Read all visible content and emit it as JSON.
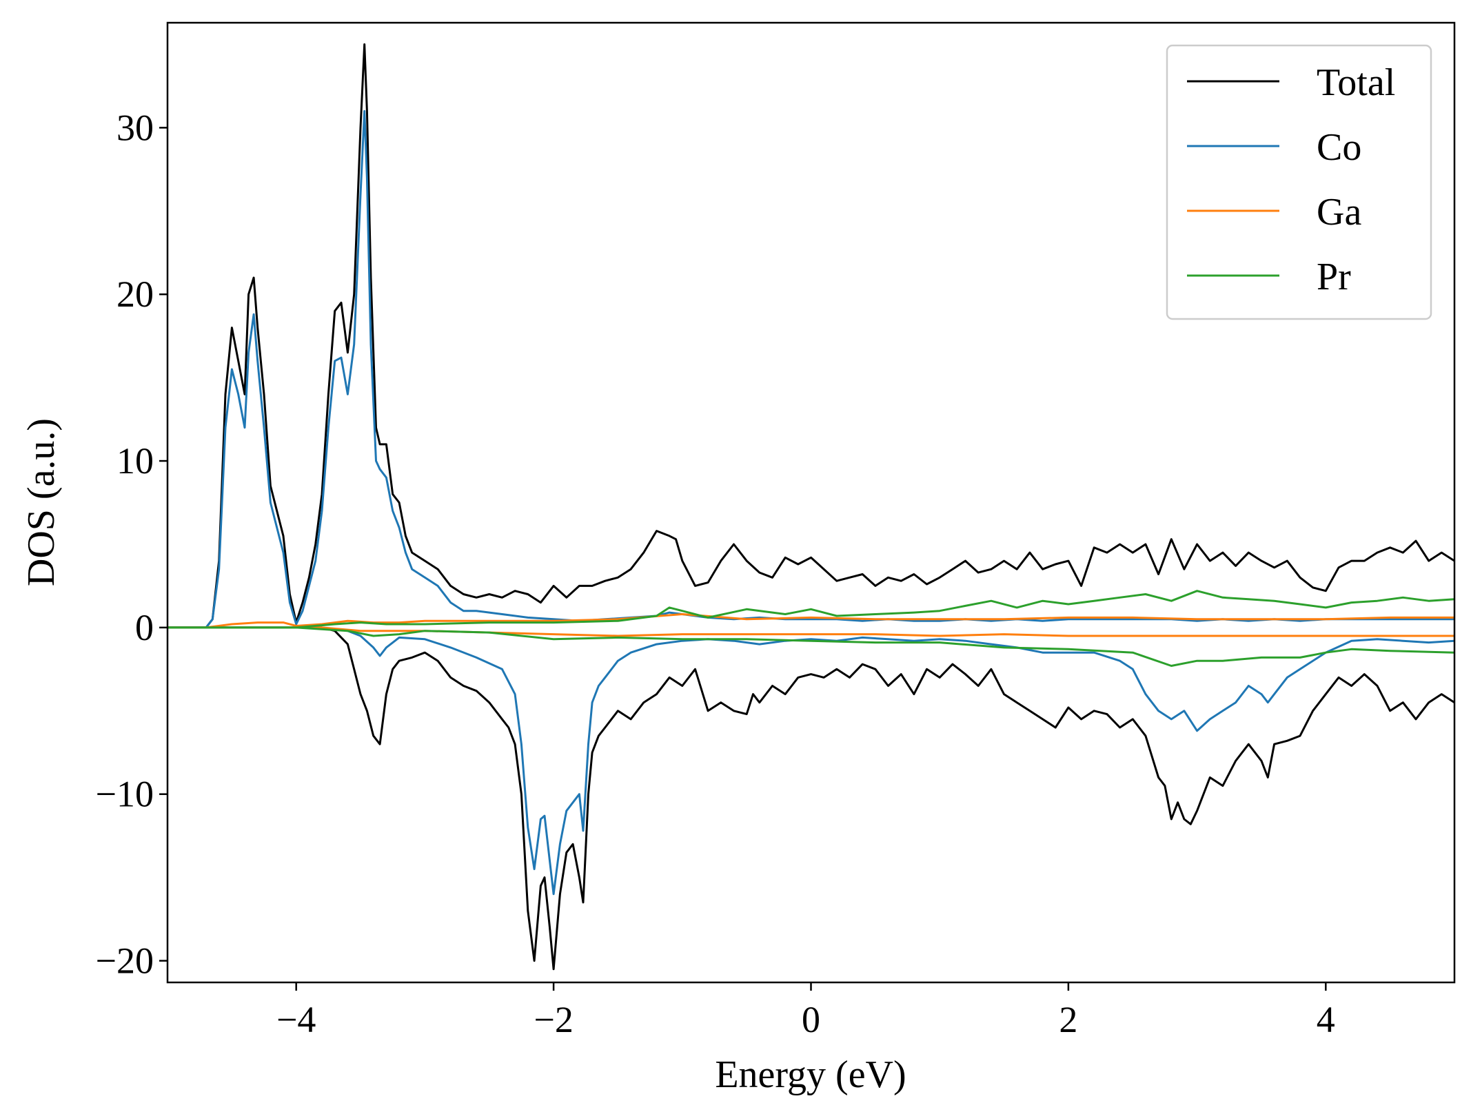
{
  "chart_data": {
    "type": "line",
    "xlabel": "Energy (eV)",
    "ylabel": "DOS (a.u.)",
    "xlim": [
      -5,
      5
    ],
    "ylim": [
      -21.3,
      36.3
    ],
    "xticks": [
      -4,
      -2,
      0,
      2,
      4
    ],
    "xtick_labels": [
      "−4",
      "−2",
      "0",
      "2",
      "4"
    ],
    "yticks": [
      -20,
      -10,
      0,
      10,
      20,
      30
    ],
    "ytick_labels": [
      "−20",
      "−10",
      "0",
      "10",
      "20",
      "30"
    ],
    "grid": false,
    "legend_position": "top-right",
    "colors": {
      "Total": "#000000",
      "Co": "#1f77b4",
      "Ga": "#ff7f0e",
      "Pr": "#2ca02c"
    },
    "series": [
      {
        "name": "Total",
        "component": "spin-up",
        "color": "#000000",
        "x": [
          -5.0,
          -4.8,
          -4.7,
          -4.65,
          -4.6,
          -4.55,
          -4.5,
          -4.45,
          -4.4,
          -4.37,
          -4.33,
          -4.3,
          -4.25,
          -4.2,
          -4.15,
          -4.1,
          -4.05,
          -4.0,
          -3.95,
          -3.9,
          -3.85,
          -3.8,
          -3.75,
          -3.7,
          -3.65,
          -3.6,
          -3.55,
          -3.5,
          -3.47,
          -3.45,
          -3.42,
          -3.38,
          -3.35,
          -3.3,
          -3.25,
          -3.2,
          -3.15,
          -3.1,
          -3.0,
          -2.9,
          -2.8,
          -2.7,
          -2.6,
          -2.5,
          -2.4,
          -2.3,
          -2.2,
          -2.1,
          -2.0,
          -1.9,
          -1.8,
          -1.7,
          -1.6,
          -1.5,
          -1.4,
          -1.3,
          -1.2,
          -1.1,
          -1.05,
          -1.0,
          -0.9,
          -0.8,
          -0.7,
          -0.6,
          -0.5,
          -0.4,
          -0.3,
          -0.2,
          -0.1,
          0.0,
          0.1,
          0.2,
          0.3,
          0.4,
          0.5,
          0.6,
          0.7,
          0.8,
          0.9,
          1.0,
          1.1,
          1.2,
          1.3,
          1.4,
          1.5,
          1.6,
          1.7,
          1.8,
          1.9,
          2.0,
          2.1,
          2.2,
          2.3,
          2.4,
          2.5,
          2.6,
          2.7,
          2.8,
          2.9,
          3.0,
          3.1,
          3.2,
          3.3,
          3.4,
          3.5,
          3.6,
          3.7,
          3.8,
          3.9,
          4.0,
          4.1,
          4.2,
          4.3,
          4.4,
          4.5,
          4.6,
          4.7,
          4.8,
          4.9,
          5.0
        ],
        "y": [
          0,
          0,
          0,
          0.5,
          4.0,
          14.0,
          18.0,
          16.0,
          14.0,
          20.0,
          21.0,
          18.0,
          14.0,
          8.5,
          7.0,
          5.5,
          2.0,
          0.3,
          1.5,
          3.0,
          5.0,
          8.0,
          14.0,
          19.0,
          19.5,
          16.5,
          20.0,
          30.0,
          35.0,
          31.0,
          21.0,
          12.0,
          11.0,
          11.0,
          8.0,
          7.5,
          5.5,
          4.5,
          4.0,
          3.5,
          2.5,
          2.0,
          1.8,
          2.0,
          1.8,
          2.2,
          2.0,
          1.5,
          2.5,
          1.8,
          2.5,
          2.5,
          2.8,
          3.0,
          3.5,
          4.5,
          5.8,
          5.5,
          5.3,
          4.0,
          2.5,
          2.7,
          4.0,
          5.0,
          4.0,
          3.3,
          3.0,
          4.2,
          3.8,
          4.2,
          3.5,
          2.8,
          3.0,
          3.2,
          2.5,
          3.0,
          2.8,
          3.2,
          2.6,
          3.0,
          3.5,
          4.0,
          3.3,
          3.5,
          4.0,
          3.5,
          4.5,
          3.5,
          3.8,
          4.0,
          2.5,
          4.8,
          4.5,
          5.0,
          4.5,
          5.0,
          3.2,
          5.3,
          3.5,
          5.0,
          4.0,
          4.5,
          3.7,
          4.5,
          4.0,
          3.6,
          4.0,
          3.0,
          2.4,
          2.2,
          3.6,
          4.0,
          4.0,
          4.5,
          4.8,
          4.5,
          5.2,
          4.0,
          4.5,
          4.0
        ]
      },
      {
        "name": "Total",
        "component": "spin-down",
        "color": "#000000",
        "x": [
          -5.0,
          -3.8,
          -3.7,
          -3.6,
          -3.55,
          -3.5,
          -3.45,
          -3.4,
          -3.35,
          -3.3,
          -3.25,
          -3.2,
          -3.1,
          -3.0,
          -2.9,
          -2.8,
          -2.7,
          -2.6,
          -2.5,
          -2.4,
          -2.35,
          -2.3,
          -2.25,
          -2.2,
          -2.15,
          -2.1,
          -2.07,
          -2.03,
          -2.0,
          -1.95,
          -1.9,
          -1.85,
          -1.8,
          -1.77,
          -1.73,
          -1.7,
          -1.65,
          -1.6,
          -1.5,
          -1.4,
          -1.3,
          -1.2,
          -1.1,
          -1.0,
          -0.9,
          -0.8,
          -0.7,
          -0.6,
          -0.5,
          -0.45,
          -0.4,
          -0.3,
          -0.2,
          -0.1,
          0.0,
          0.1,
          0.2,
          0.3,
          0.4,
          0.5,
          0.6,
          0.7,
          0.8,
          0.9,
          1.0,
          1.1,
          1.2,
          1.3,
          1.4,
          1.5,
          1.6,
          1.7,
          1.8,
          1.9,
          2.0,
          2.1,
          2.2,
          2.3,
          2.4,
          2.5,
          2.6,
          2.7,
          2.75,
          2.8,
          2.85,
          2.9,
          2.95,
          3.0,
          3.1,
          3.2,
          3.3,
          3.4,
          3.5,
          3.55,
          3.6,
          3.7,
          3.8,
          3.9,
          4.0,
          4.1,
          4.2,
          4.3,
          4.4,
          4.5,
          4.6,
          4.7,
          4.8,
          4.9,
          5.0
        ],
        "y": [
          0,
          0,
          -0.2,
          -1.0,
          -2.5,
          -4.0,
          -5.0,
          -6.5,
          -7.0,
          -4.0,
          -2.5,
          -2.0,
          -1.8,
          -1.5,
          -2.0,
          -3.0,
          -3.5,
          -3.8,
          -4.5,
          -5.5,
          -6.0,
          -7.0,
          -10.0,
          -17.0,
          -20.0,
          -15.5,
          -15.0,
          -18.0,
          -20.5,
          -16.0,
          -13.5,
          -13.0,
          -15.0,
          -16.5,
          -10.0,
          -7.5,
          -6.5,
          -6.0,
          -5.0,
          -5.5,
          -4.5,
          -4.0,
          -3.0,
          -3.5,
          -2.5,
          -5.0,
          -4.5,
          -5.0,
          -5.2,
          -4.0,
          -4.5,
          -3.5,
          -4.0,
          -3.0,
          -2.8,
          -3.0,
          -2.5,
          -3.0,
          -2.2,
          -2.5,
          -3.5,
          -2.8,
          -4.0,
          -2.5,
          -3.0,
          -2.2,
          -2.8,
          -3.5,
          -2.5,
          -4.0,
          -4.5,
          -5.0,
          -5.5,
          -6.0,
          -4.8,
          -5.5,
          -5.0,
          -5.2,
          -6.0,
          -5.5,
          -6.5,
          -9.0,
          -9.5,
          -11.5,
          -10.5,
          -11.5,
          -11.8,
          -11.0,
          -9.0,
          -9.5,
          -8.0,
          -7.0,
          -8.0,
          -9.0,
          -7.0,
          -6.8,
          -6.5,
          -5.0,
          -4.0,
          -3.0,
          -3.5,
          -2.8,
          -3.5,
          -5.0,
          -4.5,
          -5.5,
          -4.5,
          -4.0,
          -4.5
        ]
      },
      {
        "name": "Co",
        "component": "spin-up",
        "color": "#1f77b4",
        "x": [
          -5.0,
          -4.8,
          -4.7,
          -4.65,
          -4.6,
          -4.55,
          -4.5,
          -4.45,
          -4.4,
          -4.37,
          -4.33,
          -4.3,
          -4.25,
          -4.2,
          -4.15,
          -4.1,
          -4.05,
          -4.0,
          -3.95,
          -3.9,
          -3.85,
          -3.8,
          -3.75,
          -3.7,
          -3.65,
          -3.6,
          -3.55,
          -3.5,
          -3.47,
          -3.45,
          -3.42,
          -3.38,
          -3.35,
          -3.3,
          -3.25,
          -3.2,
          -3.15,
          -3.1,
          -3.0,
          -2.9,
          -2.8,
          -2.7,
          -2.6,
          -2.5,
          -2.4,
          -2.2,
          -2.0,
          -1.8,
          -1.6,
          -1.4,
          -1.2,
          -1.1,
          -1.0,
          -0.8,
          -0.6,
          -0.4,
          -0.2,
          0.0,
          0.2,
          0.4,
          0.6,
          0.8,
          1.0,
          1.2,
          1.4,
          1.6,
          1.8,
          2.0,
          2.2,
          2.4,
          2.6,
          2.8,
          3.0,
          3.2,
          3.4,
          3.6,
          3.8,
          4.0,
          4.2,
          4.4,
          4.6,
          4.8,
          5.0
        ],
        "y": [
          0,
          0,
          0,
          0.5,
          3.5,
          12.0,
          15.5,
          14.0,
          12.0,
          16.5,
          18.8,
          16.0,
          12.0,
          7.5,
          6.0,
          4.5,
          1.5,
          0.2,
          1.0,
          2.5,
          4.0,
          7.0,
          12.0,
          16.0,
          16.2,
          14.0,
          17.0,
          26.0,
          31.0,
          27.0,
          17.0,
          10.0,
          9.5,
          9.0,
          7.0,
          6.0,
          4.5,
          3.5,
          3.0,
          2.5,
          1.5,
          1.0,
          1.0,
          0.9,
          0.8,
          0.6,
          0.5,
          0.4,
          0.5,
          0.6,
          0.7,
          0.9,
          0.8,
          0.6,
          0.5,
          0.6,
          0.5,
          0.5,
          0.5,
          0.4,
          0.5,
          0.4,
          0.4,
          0.5,
          0.4,
          0.5,
          0.4,
          0.5,
          0.5,
          0.5,
          0.5,
          0.5,
          0.4,
          0.5,
          0.4,
          0.5,
          0.4,
          0.5,
          0.5,
          0.5,
          0.5,
          0.5,
          0.5
        ]
      },
      {
        "name": "Co",
        "component": "spin-down",
        "color": "#1f77b4",
        "x": [
          -5.0,
          -3.8,
          -3.6,
          -3.5,
          -3.4,
          -3.35,
          -3.3,
          -3.2,
          -3.0,
          -2.8,
          -2.6,
          -2.4,
          -2.3,
          -2.25,
          -2.2,
          -2.15,
          -2.1,
          -2.07,
          -2.03,
          -2.0,
          -1.95,
          -1.9,
          -1.85,
          -1.8,
          -1.77,
          -1.73,
          -1.7,
          -1.65,
          -1.6,
          -1.5,
          -1.4,
          -1.2,
          -1.0,
          -0.8,
          -0.6,
          -0.4,
          -0.2,
          0.0,
          0.2,
          0.4,
          0.6,
          0.8,
          1.0,
          1.2,
          1.4,
          1.6,
          1.8,
          2.0,
          2.2,
          2.4,
          2.5,
          2.6,
          2.7,
          2.8,
          2.9,
          3.0,
          3.1,
          3.2,
          3.3,
          3.4,
          3.5,
          3.55,
          3.6,
          3.7,
          3.8,
          4.0,
          4.2,
          4.4,
          4.6,
          4.8,
          5.0
        ],
        "y": [
          0,
          0,
          -0.2,
          -0.5,
          -1.2,
          -1.7,
          -1.2,
          -0.6,
          -0.7,
          -1.2,
          -1.8,
          -2.5,
          -4.0,
          -7.0,
          -12.0,
          -14.5,
          -11.5,
          -11.3,
          -14.0,
          -16.0,
          -13.0,
          -11.0,
          -10.5,
          -10.0,
          -12.2,
          -7.0,
          -4.5,
          -3.5,
          -3.0,
          -2.0,
          -1.5,
          -1.0,
          -0.8,
          -0.7,
          -0.8,
          -1.0,
          -0.8,
          -0.7,
          -0.8,
          -0.6,
          -0.7,
          -0.8,
          -0.7,
          -0.8,
          -1.0,
          -1.2,
          -1.5,
          -1.5,
          -1.5,
          -2.0,
          -2.5,
          -4.0,
          -5.0,
          -5.5,
          -5.0,
          -6.2,
          -5.5,
          -5.0,
          -4.5,
          -3.5,
          -4.0,
          -4.5,
          -4.0,
          -3.0,
          -2.5,
          -1.5,
          -0.8,
          -0.7,
          -0.8,
          -0.9,
          -0.8
        ]
      },
      {
        "name": "Ga",
        "component": "spin-up",
        "color": "#ff7f0e",
        "x": [
          -5.0,
          -4.7,
          -4.5,
          -4.3,
          -4.1,
          -4.0,
          -3.8,
          -3.6,
          -3.4,
          -3.2,
          -3.0,
          -2.5,
          -2.0,
          -1.5,
          -1.0,
          -0.5,
          0.0,
          0.5,
          1.0,
          1.5,
          2.0,
          2.5,
          3.0,
          3.5,
          4.0,
          4.5,
          5.0
        ],
        "y": [
          0,
          0,
          0.2,
          0.3,
          0.3,
          0.1,
          0.2,
          0.4,
          0.3,
          0.3,
          0.4,
          0.4,
          0.4,
          0.5,
          0.8,
          0.5,
          0.6,
          0.5,
          0.5,
          0.5,
          0.6,
          0.6,
          0.5,
          0.5,
          0.5,
          0.6,
          0.6
        ]
      },
      {
        "name": "Ga",
        "component": "spin-down",
        "color": "#ff7f0e",
        "x": [
          -5.0,
          -3.8,
          -3.5,
          -3.0,
          -2.5,
          -2.0,
          -1.5,
          -1.0,
          -0.5,
          0.0,
          0.5,
          1.0,
          1.5,
          2.0,
          2.5,
          3.0,
          3.5,
          4.0,
          4.5,
          5.0
        ],
        "y": [
          0,
          0,
          -0.2,
          -0.2,
          -0.3,
          -0.4,
          -0.5,
          -0.4,
          -0.4,
          -0.4,
          -0.4,
          -0.5,
          -0.4,
          -0.5,
          -0.5,
          -0.5,
          -0.5,
          -0.5,
          -0.5,
          -0.5
        ]
      },
      {
        "name": "Pr",
        "component": "spin-up",
        "color": "#2ca02c",
        "x": [
          -5.0,
          -4.5,
          -4.0,
          -3.7,
          -3.5,
          -3.3,
          -3.0,
          -2.5,
          -2.0,
          -1.5,
          -1.2,
          -1.1,
          -1.0,
          -0.8,
          -0.5,
          -0.2,
          0.0,
          0.2,
          0.5,
          0.8,
          1.0,
          1.2,
          1.4,
          1.6,
          1.8,
          2.0,
          2.2,
          2.4,
          2.6,
          2.8,
          3.0,
          3.2,
          3.4,
          3.6,
          3.8,
          4.0,
          4.2,
          4.4,
          4.6,
          4.8,
          5.0
        ],
        "y": [
          0,
          0,
          0,
          0.2,
          0.3,
          0.2,
          0.2,
          0.3,
          0.3,
          0.4,
          0.7,
          1.2,
          1.0,
          0.6,
          1.1,
          0.8,
          1.1,
          0.7,
          0.8,
          0.9,
          1.0,
          1.3,
          1.6,
          1.2,
          1.6,
          1.4,
          1.6,
          1.8,
          2.0,
          1.6,
          2.2,
          1.8,
          1.7,
          1.6,
          1.4,
          1.2,
          1.5,
          1.6,
          1.8,
          1.6,
          1.7
        ]
      },
      {
        "name": "Pr",
        "component": "spin-down",
        "color": "#2ca02c",
        "x": [
          -5.0,
          -4.0,
          -3.6,
          -3.4,
          -3.2,
          -3.0,
          -2.5,
          -2.0,
          -1.5,
          -1.0,
          -0.5,
          0.0,
          0.5,
          1.0,
          1.5,
          2.0,
          2.5,
          2.8,
          3.0,
          3.2,
          3.5,
          3.8,
          4.0,
          4.2,
          4.5,
          5.0
        ],
        "y": [
          0,
          0,
          -0.2,
          -0.5,
          -0.4,
          -0.2,
          -0.3,
          -0.7,
          -0.6,
          -0.7,
          -0.7,
          -0.8,
          -0.9,
          -0.9,
          -1.2,
          -1.3,
          -1.5,
          -2.3,
          -2.0,
          -2.0,
          -1.8,
          -1.8,
          -1.5,
          -1.3,
          -1.4,
          -1.5
        ]
      }
    ],
    "legend": [
      {
        "name": "Total",
        "color": "#000000"
      },
      {
        "name": "Co",
        "color": "#1f77b4"
      },
      {
        "name": "Ga",
        "color": "#ff7f0e"
      },
      {
        "name": "Pr",
        "color": "#2ca02c"
      }
    ]
  }
}
